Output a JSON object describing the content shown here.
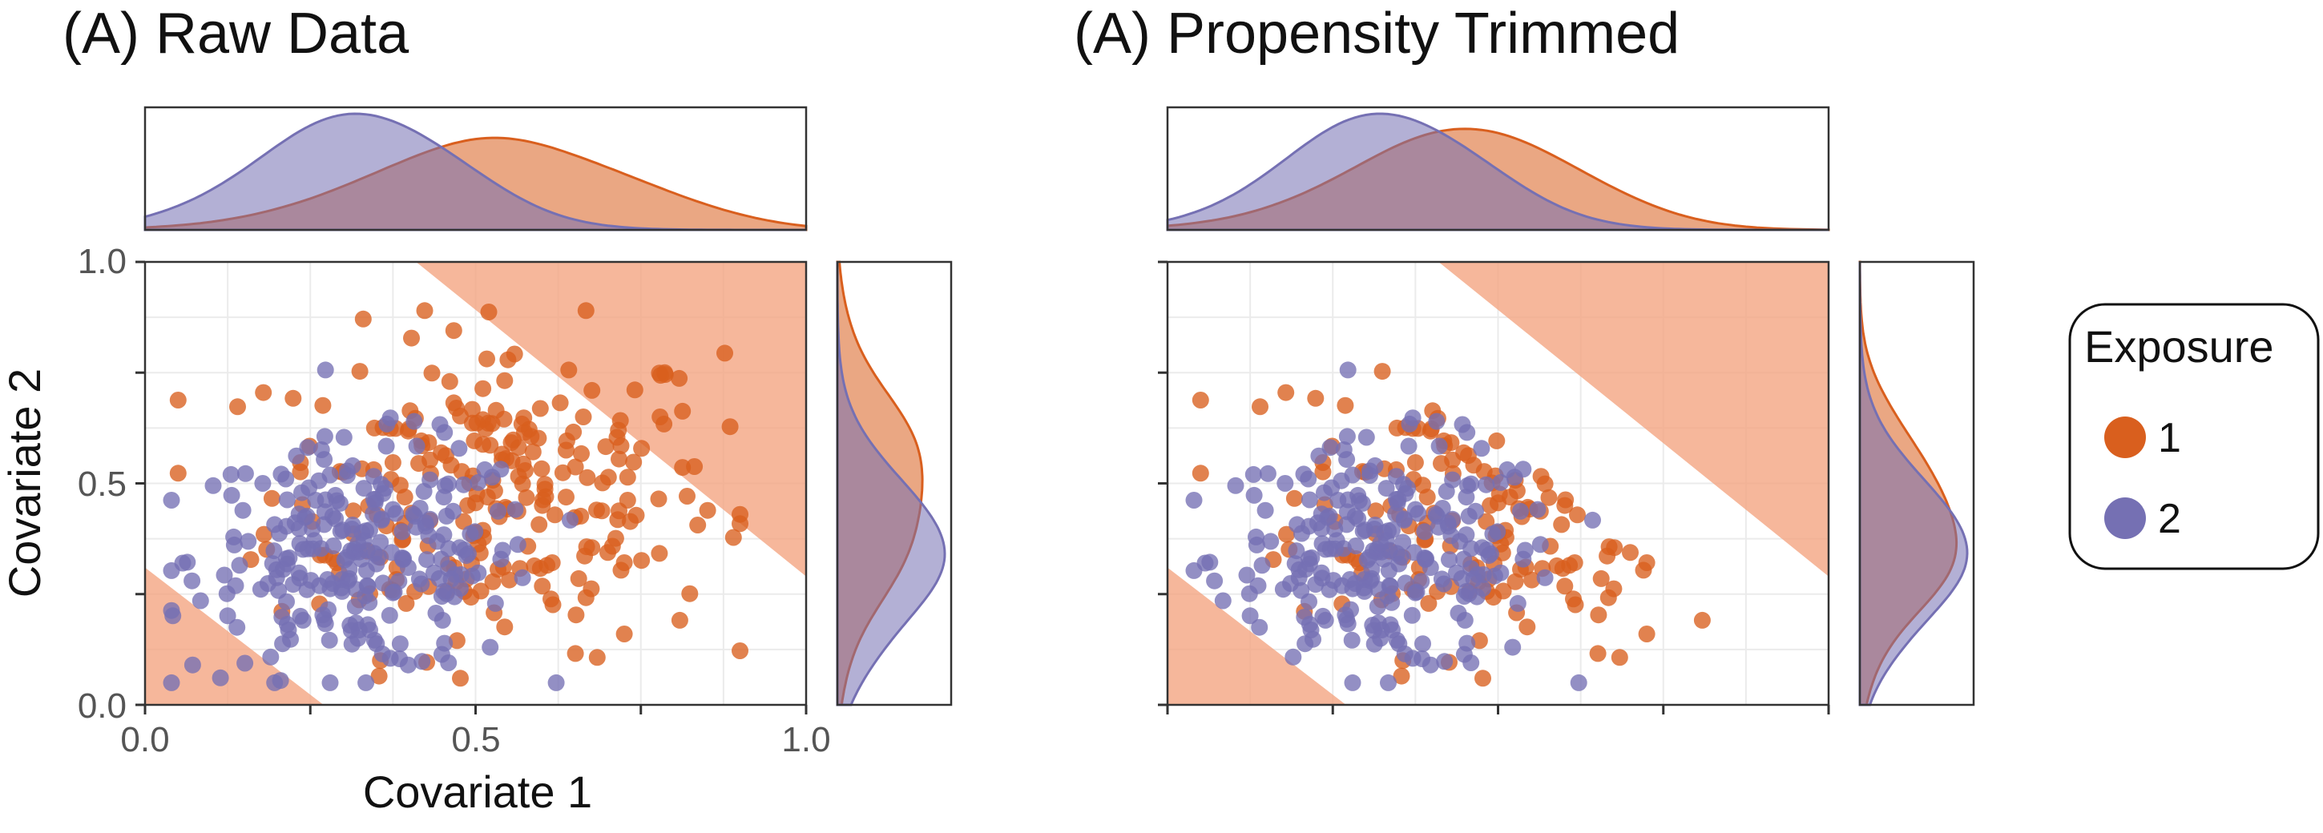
{
  "colors": {
    "exposure_1": "#D95F1E",
    "exposure_2": "#7570B3",
    "trim_region": "#F4A582"
  },
  "legend": {
    "title": "Exposure",
    "items": [
      {
        "label": "1",
        "color": "#D95F1E"
      },
      {
        "label": "2",
        "color": "#7570B3"
      }
    ]
  },
  "chart_data": [
    {
      "type": "scatter",
      "title": "(A) Raw Data",
      "xlabel": "Covariate 1",
      "ylabel": "Covariate 2",
      "xlim": [
        0,
        1
      ],
      "ylim": [
        0,
        1
      ],
      "x_ticks": [
        "0.0",
        "0.5",
        "1.0"
      ],
      "y_ticks": [
        "0.0",
        "0.5",
        "1.0"
      ],
      "grid": true,
      "marginal_densities": {
        "top": "Covariate 1 by exposure",
        "right": "Covariate 2 by exposure"
      },
      "shaded_regions": [
        {
          "polygon": [
            [
              0.41,
              1.0
            ],
            [
              1.0,
              1.0
            ],
            [
              1.0,
              0.29
            ]
          ]
        },
        {
          "polygon": [
            [
              0.0,
              0.0
            ],
            [
              0.27,
              0.0
            ],
            [
              0.0,
              0.31
            ]
          ]
        }
      ],
      "series": [
        {
          "name": "1",
          "color": "#D95F1E",
          "points": []
        },
        {
          "name": "2",
          "color": "#7570B3",
          "points": []
        }
      ]
    },
    {
      "type": "scatter",
      "title": "(A) Propensity Trimmed",
      "xlim": [
        0,
        1
      ],
      "ylim": [
        0,
        1
      ],
      "grid": true,
      "marginal_densities": {
        "top": "Covariate 1 by exposure",
        "right": "Covariate 2 by exposure"
      },
      "shaded_regions": [
        {
          "polygon": [
            [
              0.41,
              1.0
            ],
            [
              1.0,
              1.0
            ],
            [
              1.0,
              0.29
            ]
          ]
        },
        {
          "polygon": [
            [
              0.0,
              0.0
            ],
            [
              0.27,
              0.0
            ],
            [
              0.0,
              0.31
            ]
          ]
        }
      ],
      "series": [
        {
          "name": "1",
          "color": "#D95F1E",
          "points": []
        },
        {
          "name": "2",
          "color": "#7570B3",
          "points": []
        }
      ]
    }
  ]
}
